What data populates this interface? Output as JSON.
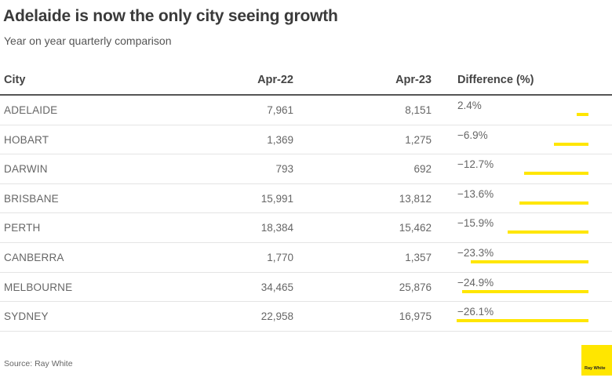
{
  "title": "Adelaide is now the only city seeing growth",
  "subtitle": "Year on year quarterly comparison",
  "table": {
    "headers": {
      "city": "City",
      "apr22": "Apr-22",
      "apr23": "Apr-23",
      "difference": "Difference (%)"
    }
  },
  "chart_data": {
    "type": "table",
    "title": "Adelaide is now the only city seeing growth",
    "subtitle": "Year on year quarterly comparison",
    "columns": [
      "City",
      "Apr-22",
      "Apr-23",
      "Difference (%)"
    ],
    "rows": [
      {
        "city": "ADELAIDE",
        "apr22": "7,961",
        "apr23": "8,151",
        "difference_label": "2.4%",
        "difference": 2.4
      },
      {
        "city": "HOBART",
        "apr22": "1,369",
        "apr23": "1,275",
        "difference_label": "−6.9%",
        "difference": -6.9
      },
      {
        "city": "DARWIN",
        "apr22": "793",
        "apr23": "692",
        "difference_label": "−12.7%",
        "difference": -12.7
      },
      {
        "city": "BRISBANE",
        "apr22": "15,991",
        "apr23": "13,812",
        "difference_label": "−13.6%",
        "difference": -13.6
      },
      {
        "city": "PERTH",
        "apr22": "18,384",
        "apr23": "15,462",
        "difference_label": "−15.9%",
        "difference": -15.9
      },
      {
        "city": "CANBERRA",
        "apr22": "1,770",
        "apr23": "1,357",
        "difference_label": "−23.3%",
        "difference": -23.3
      },
      {
        "city": "MELBOURNE",
        "apr22": "34,465",
        "apr23": "25,876",
        "difference_label": "−24.9%",
        "difference": -24.9
      },
      {
        "city": "SYDNEY",
        "apr22": "22,958",
        "apr23": "16,975",
        "difference_label": "−26.1%",
        "difference": -26.1
      }
    ],
    "bar_color": "#ffe600"
  },
  "source": "Source: Ray White",
  "logo": {
    "text": "Ray White",
    "color": "#ffe600"
  }
}
